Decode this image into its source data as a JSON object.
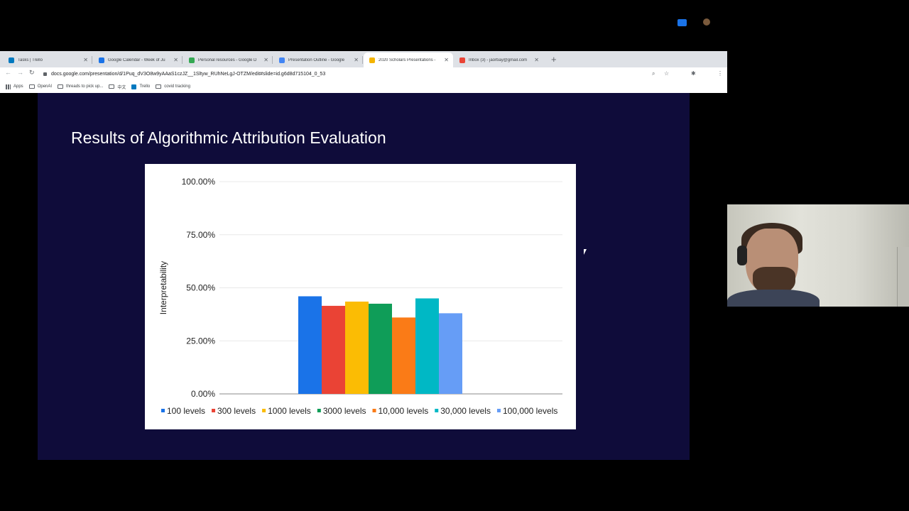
{
  "browser": {
    "tabs": [
      {
        "title": "Tasks | Trello",
        "color": "#0079bf"
      },
      {
        "title": "Google Calendar - Week of Ju",
        "color": "#1a73e8"
      },
      {
        "title": "Personal resources - Google D",
        "color": "#34a853"
      },
      {
        "title": "Presentation Outline - Google",
        "color": "#4285f4"
      },
      {
        "title": "2020 Scholars Presentations -",
        "color": "#f4b400",
        "active": true
      },
      {
        "title": "Inbox (3) - jaorbay@gmail.com",
        "color": "#ea4335"
      }
    ],
    "url": "docs.google.com/presentation/d/1Puq_dV3O8w9yAAaS1czJZ__1Sltyw_RUhNeLgJ-OTZM/edit#slide=id.g6d8d715104_0_53",
    "bookmarks": [
      {
        "label": "Apps",
        "icon": "apps-grid-icon"
      },
      {
        "label": "OpenAI",
        "icon": "folder-icon"
      },
      {
        "label": "threads to pick up...",
        "icon": "folder-icon"
      },
      {
        "label": "中文",
        "icon": "folder-icon"
      },
      {
        "label": "Trello",
        "icon": "trello-icon"
      },
      {
        "label": "covid tracking",
        "icon": "folder-icon"
      }
    ]
  },
  "slide": {
    "title": "Results of Algorithmic Attribution Evaluation"
  },
  "chart_data": {
    "type": "bar",
    "title": "",
    "xlabel": "",
    "ylabel": "Interpretability",
    "ylim": [
      0,
      100
    ],
    "yticks": [
      "0.00%",
      "25.00%",
      "50.00%",
      "75.00%",
      "100.00%"
    ],
    "grid": true,
    "legend": "bottom",
    "categories": [
      ""
    ],
    "series": [
      {
        "name": "100 levels",
        "values": [
          46
        ],
        "color": "#1a73e8"
      },
      {
        "name": "300 levels",
        "values": [
          41.5
        ],
        "color": "#ea4335"
      },
      {
        "name": "1000 levels",
        "values": [
          43.5
        ],
        "color": "#fbbc04"
      },
      {
        "name": "3000 levels",
        "values": [
          42.5
        ],
        "color": "#0f9d58"
      },
      {
        "name": "10,000 levels",
        "values": [
          36
        ],
        "color": "#fa7b17"
      },
      {
        "name": "30,000 levels",
        "values": [
          45
        ],
        "color": "#00b8c5"
      },
      {
        "name": "100,000 levels",
        "values": [
          38
        ],
        "color": "#669df6"
      }
    ]
  }
}
